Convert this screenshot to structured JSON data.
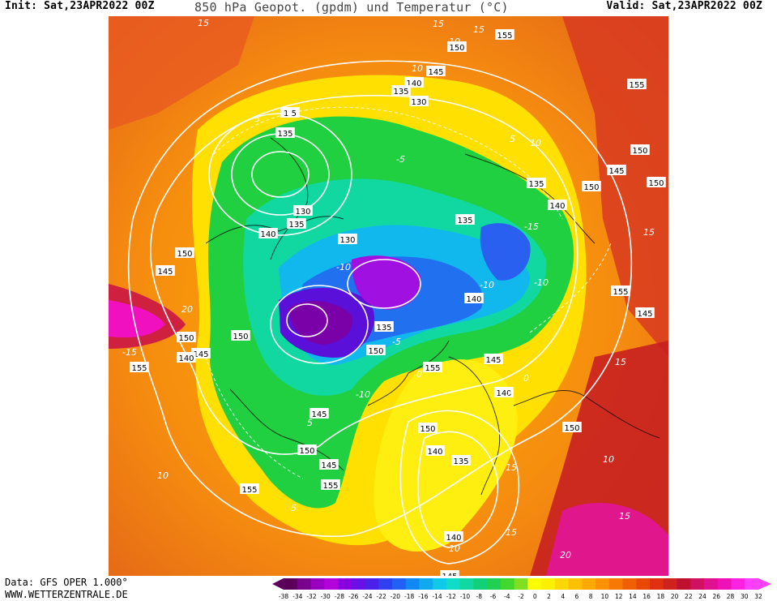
{
  "header": {
    "init": "Init: Sat,23APR2022 00Z",
    "title": "850 hPa Geopot. (gpdm) und Temperatur (°C)",
    "valid": "Valid: Sat,23APR2022 00Z"
  },
  "footer": {
    "data_source": "Data: GFS OPER 1.000°",
    "website": "WWW.WETTERZENTRALE.DE"
  },
  "color_scale": {
    "labels": [
      "-38",
      "-34",
      "-32",
      "-30",
      "-28",
      "-26",
      "-24",
      "-22",
      "-20",
      "-18",
      "-16",
      "-14",
      "-12",
      "-10",
      "-8",
      "-6",
      "-4",
      "-2",
      "0",
      "2",
      "4",
      "6",
      "8",
      "10",
      "12",
      "14",
      "16",
      "18",
      "20",
      "22",
      "24",
      "26",
      "28",
      "30",
      "32"
    ],
    "colors": [
      "#5a005a",
      "#7a0090",
      "#9a00c0",
      "#b400dc",
      "#8a00e0",
      "#6a10e6",
      "#4a20ea",
      "#3040f0",
      "#2060f4",
      "#1088f4",
      "#10a8f0",
      "#10c8e8",
      "#10dcc8",
      "#10d8a0",
      "#10d078",
      "#20d050",
      "#40d830",
      "#80e020",
      "#ffff00",
      "#fff000",
      "#ffd800",
      "#ffc000",
      "#ffa800",
      "#ff9000",
      "#f87800",
      "#f06000",
      "#e84800",
      "#e03010",
      "#d02020",
      "#c01030",
      "#d01060",
      "#e01090",
      "#f010b8",
      "#ff20e0",
      "#ff40ff"
    ]
  },
  "map": {
    "projection": "polar-stereographic",
    "geopotential_labels": [
      {
        "text": "155"
      },
      {
        "text": "150"
      },
      {
        "text": "145"
      },
      {
        "text": "140"
      },
      {
        "text": "135"
      },
      {
        "text": "130"
      },
      {
        "text": "1 5"
      },
      {
        "text": "135"
      },
      {
        "text": "130"
      },
      {
        "text": "135"
      },
      {
        "text": "140"
      },
      {
        "text": "130"
      },
      {
        "text": "135"
      },
      {
        "text": "140"
      },
      {
        "text": "135"
      },
      {
        "text": "150"
      },
      {
        "text": "150"
      },
      {
        "text": "145"
      },
      {
        "text": "150"
      },
      {
        "text": "155"
      },
      {
        "text": "150"
      },
      {
        "text": "145"
      },
      {
        "text": "135"
      },
      {
        "text": "140"
      },
      {
        "text": "145"
      },
      {
        "text": "140"
      },
      {
        "text": "155"
      },
      {
        "text": "150"
      },
      {
        "text": "145"
      },
      {
        "text": "150"
      },
      {
        "text": "140"
      },
      {
        "text": "135"
      },
      {
        "text": "150"
      },
      {
        "text": "155"
      },
      {
        "text": "145"
      },
      {
        "text": "140"
      },
      {
        "text": "145"
      },
      {
        "text": "150"
      },
      {
        "text": "155"
      },
      {
        "text": "145"
      },
      {
        "text": "140"
      },
      {
        "text": "150"
      },
      {
        "text": "145"
      },
      {
        "text": "150"
      },
      {
        "text": "155"
      },
      {
        "text": "155"
      }
    ],
    "temperature_labels": [
      "15",
      "15",
      "10",
      "5",
      "-5",
      "-10",
      "-15",
      "-15",
      "-10",
      "-10",
      "5",
      "10",
      "15",
      "15",
      "10",
      "20",
      "20",
      "15",
      "10",
      "5",
      "0",
      "-5",
      "-10",
      "15",
      "10",
      "5",
      "15",
      "10",
      "15",
      "0",
      "-5"
    ]
  }
}
